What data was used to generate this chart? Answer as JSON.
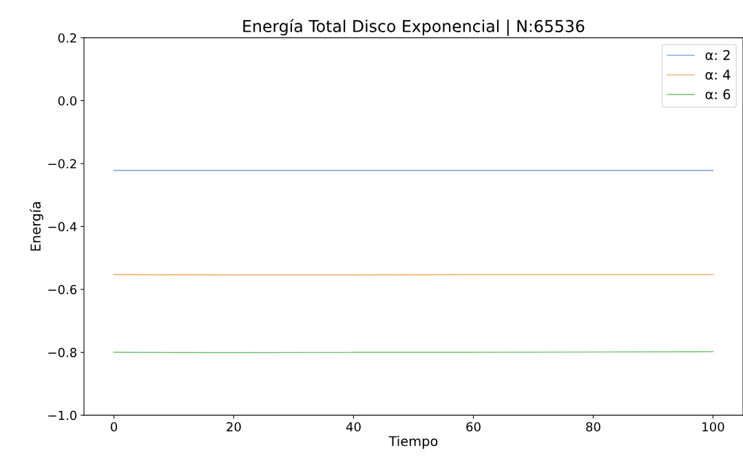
{
  "chart_data": {
    "type": "line",
    "title": "Energía Total Disco Exponencial | N:65536",
    "xlabel": "Tiempo",
    "ylabel": "Energía",
    "x": [
      0,
      20,
      40,
      60,
      80,
      100
    ],
    "series": [
      {
        "name": "α: 2",
        "color": "#6fa3d0",
        "values": [
          -0.222,
          -0.222,
          -0.222,
          -0.222,
          -0.222,
          -0.222
        ]
      },
      {
        "name": "α: 4",
        "color": "#f9a55c",
        "values": [
          -0.553,
          -0.554,
          -0.554,
          -0.553,
          -0.553,
          -0.553
        ]
      },
      {
        "name": "α: 6",
        "color": "#6cbf6c",
        "values": [
          -0.8,
          -0.801,
          -0.8,
          -0.8,
          -0.799,
          -0.798
        ]
      }
    ],
    "xlim": [
      -5,
      105
    ],
    "xticks": [
      0,
      20,
      40,
      60,
      80,
      100
    ],
    "ylim": [
      -1.0,
      0.2
    ],
    "yticks": [
      {
        "value": -1.0,
        "label": "−1.0"
      },
      {
        "value": -0.8,
        "label": "−0.8"
      },
      {
        "value": -0.6,
        "label": "−0.6"
      },
      {
        "value": -0.4,
        "label": "−0.4"
      },
      {
        "value": -0.2,
        "label": "−0.2"
      },
      {
        "value": 0.0,
        "label": "0.0"
      },
      {
        "value": 0.2,
        "label": "0.2"
      }
    ],
    "grid": false,
    "legend": "top right",
    "marker": "none",
    "line_style": "solid"
  }
}
